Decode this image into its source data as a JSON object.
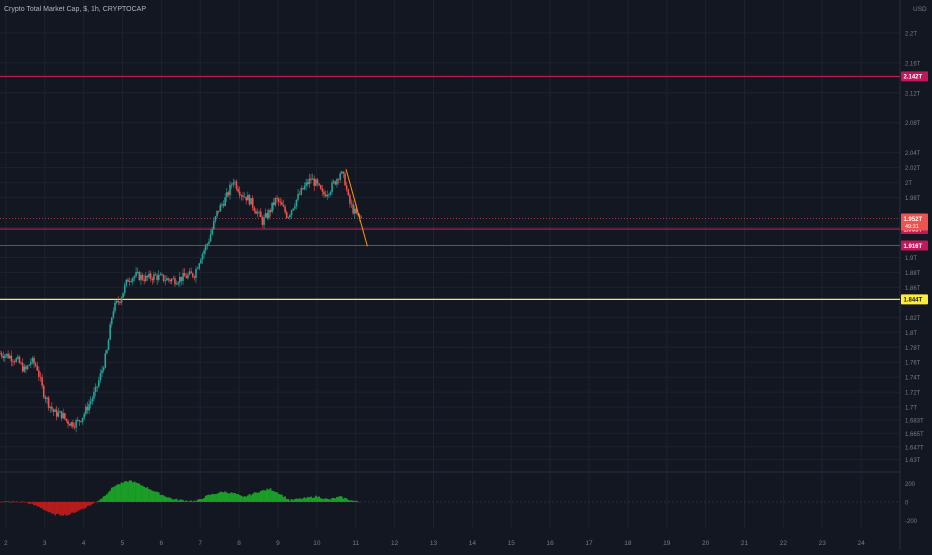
{
  "header": {
    "title": "Crypto Total Market Cap, $, 1h, CRYPTOCAP"
  },
  "currency_label": "USD",
  "chart_data": {
    "type": "candlestick",
    "title": "Crypto Total Market Cap, $, 1h, CRYPTOCAP",
    "unit": "USD",
    "price_axis": {
      "ylim": [
        1.616,
        2.244
      ],
      "tick_labels": [
        {
          "v": 2.2,
          "t": "2.2T"
        },
        {
          "v": 2.16,
          "t": "2.16T"
        },
        {
          "v": 2.12,
          "t": "2.12T"
        },
        {
          "v": 2.08,
          "t": "2.08T"
        },
        {
          "v": 2.04,
          "t": "2.04T"
        },
        {
          "v": 2.02,
          "t": "2.02T"
        },
        {
          "v": 2.0,
          "t": "2T"
        },
        {
          "v": 1.98,
          "t": "1.98T"
        },
        {
          "v": 1.94,
          "t": "1.94T"
        },
        {
          "v": 1.9,
          "t": "1.9T"
        },
        {
          "v": 1.88,
          "t": "1.88T"
        },
        {
          "v": 1.86,
          "t": "1.86T"
        },
        {
          "v": 1.82,
          "t": "1.82T"
        },
        {
          "v": 1.8,
          "t": "1.8T"
        },
        {
          "v": 1.78,
          "t": "1.78T"
        },
        {
          "v": 1.76,
          "t": "1.76T"
        },
        {
          "v": 1.74,
          "t": "1.74T"
        },
        {
          "v": 1.72,
          "t": "1.72T"
        },
        {
          "v": 1.7,
          "t": "1.7T"
        },
        {
          "v": 1.683,
          "t": "1.683T"
        },
        {
          "v": 1.665,
          "t": "1.665T"
        },
        {
          "v": 1.647,
          "t": "1.647T"
        },
        {
          "v": 1.63,
          "t": "1.63T"
        }
      ]
    },
    "time_axis": {
      "xlim": [
        1.85,
        25.0
      ],
      "ticks": [
        2,
        3,
        4,
        5,
        6,
        7,
        8,
        9,
        10,
        11,
        12,
        13,
        14,
        15,
        16,
        17,
        18,
        19,
        20,
        21,
        22,
        23,
        24
      ],
      "tick_labels": [
        "2",
        "3",
        "4",
        "5",
        "6",
        "7",
        "8",
        "9",
        "10",
        "11",
        "12",
        "13",
        "14",
        "15",
        "16",
        "17",
        "18",
        "19",
        "20",
        "21",
        "22",
        "23",
        "24"
      ]
    },
    "horizontal_levels": [
      {
        "value": 2.142,
        "label": "2.142T",
        "color": "#e91e63"
      },
      {
        "value": 1.938,
        "label": "1.938T",
        "color": "#e91e63"
      },
      {
        "value": 1.916,
        "label": "1.916T",
        "color": "#e91e63"
      },
      {
        "value": 1.844,
        "label": "1.844T",
        "color": "#ffeb3b"
      }
    ],
    "current_price": {
      "value": 1.952,
      "label": "1.952T",
      "countdown": "49:31",
      "color": "#ef5350"
    },
    "trendline": {
      "from": {
        "x": 10.75,
        "y": 2.018
      },
      "to": {
        "x": 11.3,
        "y": 1.915
      },
      "color": "#ff9800"
    },
    "price_path": [
      [
        1.85,
        1.772
      ],
      [
        2.1,
        1.768
      ],
      [
        2.3,
        1.762
      ],
      [
        2.5,
        1.748
      ],
      [
        2.65,
        1.762
      ],
      [
        2.8,
        1.754
      ],
      [
        2.95,
        1.722
      ],
      [
        3.1,
        1.705
      ],
      [
        3.25,
        1.692
      ],
      [
        3.45,
        1.69
      ],
      [
        3.55,
        1.682
      ],
      [
        3.7,
        1.678
      ],
      [
        3.85,
        1.68
      ],
      [
        4.0,
        1.69
      ],
      [
        4.15,
        1.705
      ],
      [
        4.3,
        1.72
      ],
      [
        4.45,
        1.745
      ],
      [
        4.6,
        1.774
      ],
      [
        4.75,
        1.83
      ],
      [
        4.95,
        1.846
      ],
      [
        5.15,
        1.872
      ],
      [
        5.35,
        1.876
      ],
      [
        5.6,
        1.872
      ],
      [
        5.85,
        1.875
      ],
      [
        6.1,
        1.871
      ],
      [
        6.35,
        1.87
      ],
      [
        6.6,
        1.874
      ],
      [
        6.85,
        1.878
      ],
      [
        7.0,
        1.9
      ],
      [
        7.2,
        1.92
      ],
      [
        7.45,
        1.962
      ],
      [
        7.7,
        1.983
      ],
      [
        7.85,
        2.004
      ],
      [
        8.05,
        1.986
      ],
      [
        8.25,
        1.978
      ],
      [
        8.45,
        1.962
      ],
      [
        8.6,
        1.948
      ],
      [
        8.75,
        1.958
      ],
      [
        8.95,
        1.978
      ],
      [
        9.1,
        1.968
      ],
      [
        9.25,
        1.955
      ],
      [
        9.45,
        1.975
      ],
      [
        9.65,
        1.992
      ],
      [
        9.85,
        2.005
      ],
      [
        10.0,
        1.997
      ],
      [
        10.15,
        1.983
      ],
      [
        10.35,
        1.992
      ],
      [
        10.5,
        2.004
      ],
      [
        10.6,
        2.014
      ],
      [
        10.72,
        2.003
      ],
      [
        10.82,
        1.975
      ],
      [
        10.95,
        1.962
      ],
      [
        11.05,
        1.954
      ],
      [
        11.15,
        1.952
      ]
    ],
    "oscillator": {
      "tick_labels": [
        {
          "v": 200,
          "t": "200"
        },
        {
          "v": 0,
          "t": "0"
        },
        {
          "v": -200,
          "t": "-200"
        }
      ],
      "ylim": [
        -280,
        300
      ],
      "profile": [
        [
          1.85,
          0
        ],
        [
          2.5,
          -2
        ],
        [
          2.9,
          -60
        ],
        [
          3.2,
          -135
        ],
        [
          3.6,
          -140
        ],
        [
          4.0,
          -70
        ],
        [
          4.3,
          -8
        ],
        [
          4.5,
          50
        ],
        [
          4.8,
          175
        ],
        [
          5.2,
          230
        ],
        [
          5.6,
          160
        ],
        [
          6.0,
          80
        ],
        [
          6.3,
          30
        ],
        [
          6.6,
          15
        ],
        [
          6.9,
          8
        ],
        [
          7.2,
          70
        ],
        [
          7.6,
          110
        ],
        [
          7.9,
          90
        ],
        [
          8.1,
          50
        ],
        [
          8.5,
          110
        ],
        [
          8.8,
          140
        ],
        [
          9.0,
          100
        ],
        [
          9.3,
          20
        ],
        [
          9.7,
          40
        ],
        [
          10.0,
          60
        ],
        [
          10.3,
          25
        ],
        [
          10.6,
          55
        ],
        [
          10.9,
          15
        ],
        [
          11.1,
          0
        ]
      ]
    }
  }
}
